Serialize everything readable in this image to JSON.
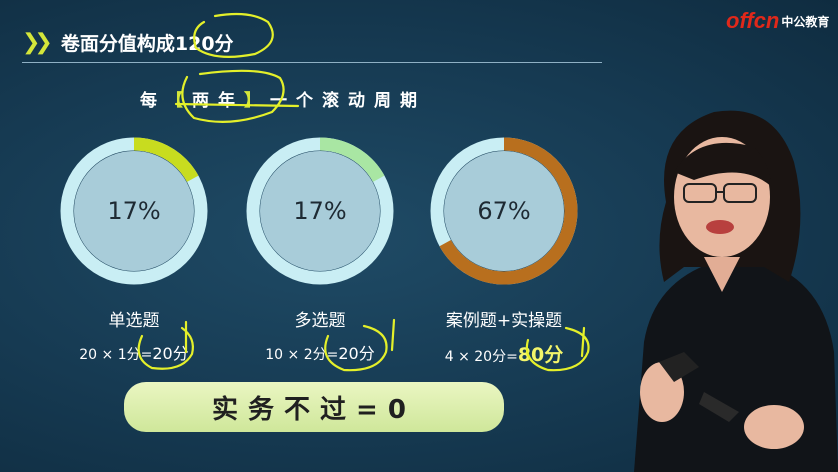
{
  "slide": {
    "title": "卷面分值构成120分",
    "logo_text": "offcn",
    "logo_cn": "中公教育",
    "cycle": {
      "prefix": "每",
      "open": "【",
      "period": "两年",
      "close": "】",
      "suffix": "一个滚动周期"
    },
    "donuts": [
      {
        "percent_label": "17%",
        "fraction": 0.17,
        "label": "单选题",
        "formula": "20 × 1分=",
        "result": "20分",
        "accent": "#c8dc1f"
      },
      {
        "percent_label": "17%",
        "fraction": 0.17,
        "label": "多选题",
        "formula": "10 × 2分=",
        "result": "20分",
        "accent": "#a9e6a3"
      },
      {
        "percent_label": "67%",
        "fraction": 0.67,
        "label": "案例题+实操题",
        "formula": "4 × 20分=",
        "result": "80分",
        "accent": "#b86f1e"
      }
    ],
    "banner": "实务不过=0"
  },
  "colors": {
    "background": "#163a52",
    "ring_base": "#c9eef4",
    "disc_fill": "#a8ccd9",
    "title_accent": "#d4e63a",
    "logo_red": "#e0281a"
  }
}
